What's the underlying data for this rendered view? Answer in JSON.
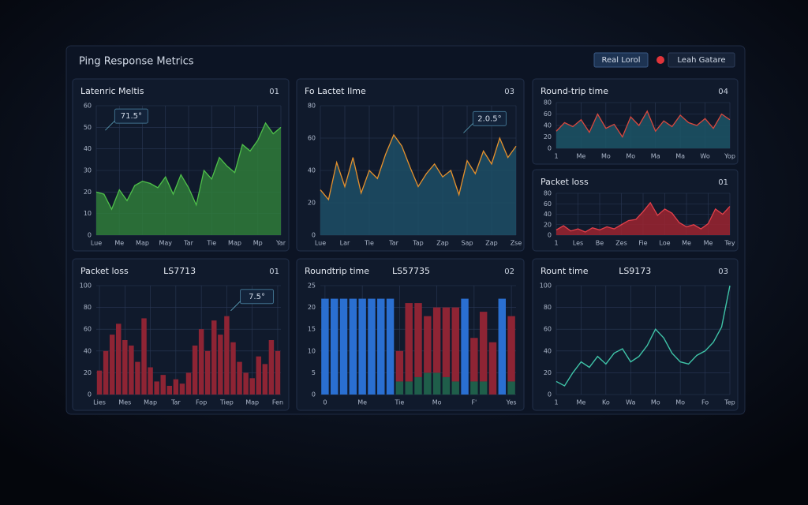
{
  "header": {
    "title": "Ping Response Metrics",
    "buttons": [
      "Real Lorol",
      "Leah Gatare"
    ]
  },
  "chart_data": [
    {
      "type": "area",
      "title": "Latenric Meltis",
      "corner": "01",
      "annotation": "71.5°",
      "color": "#2f7d3a",
      "line_color": "#4fc04a",
      "categories": [
        "Lue",
        null,
        null,
        "Me",
        null,
        null,
        "Map",
        null,
        null,
        "May",
        null,
        null,
        "Tar",
        null,
        null,
        "Tie",
        null,
        null,
        "Map",
        null,
        null,
        "Mp",
        null,
        null,
        "Yar"
      ],
      "values": [
        20,
        19,
        12,
        21,
        16,
        23,
        25,
        24,
        22,
        27,
        19,
        28,
        22,
        14,
        30,
        26,
        36,
        32,
        29,
        42,
        39,
        44,
        52,
        47,
        50
      ],
      "ylim": [
        0,
        60
      ],
      "yticks": [
        0,
        10,
        20,
        30,
        40,
        50,
        60
      ]
    },
    {
      "type": "area",
      "title": "Fo Lactet Ilme",
      "corner": "03",
      "annotation": "2.0.5°",
      "color": "#1d4f66",
      "line_color": "#e6912c",
      "categories": [
        "Lue",
        null,
        null,
        "Lar",
        null,
        null,
        "Tie",
        null,
        null,
        "Tar",
        null,
        null,
        "Tap",
        null,
        null,
        "Zap",
        null,
        null,
        "Sap",
        null,
        null,
        "Zap",
        null,
        null,
        "Zse"
      ],
      "values": [
        28,
        22,
        45,
        30,
        48,
        26,
        40,
        35,
        50,
        62,
        55,
        42,
        30,
        38,
        44,
        36,
        40,
        25,
        46,
        38,
        52,
        44,
        60,
        48,
        55
      ],
      "ylim": [
        0,
        80
      ],
      "yticks": [
        0,
        20,
        40,
        60,
        80
      ]
    },
    {
      "type": "area",
      "title": "Round-trip time",
      "corner": "04",
      "color": "#1c5566",
      "line_color": "#d9483e",
      "categories": [
        "1",
        null,
        null,
        "Me",
        null,
        null,
        "Mo",
        null,
        null,
        "Mo",
        null,
        null,
        "Ma",
        null,
        null,
        "Ma",
        null,
        null,
        "Wo",
        null,
        null,
        "Yop"
      ],
      "values": [
        30,
        45,
        38,
        50,
        28,
        60,
        35,
        42,
        20,
        55,
        40,
        65,
        30,
        48,
        38,
        58,
        45,
        40,
        52,
        35,
        60,
        50
      ],
      "ylim": [
        0,
        80
      ],
      "yticks": [
        0,
        20,
        40,
        60,
        80
      ]
    },
    {
      "type": "area",
      "title": "Packet loss",
      "corner": "01",
      "color": "#9c2530",
      "line_color": "#e0404a",
      "categories": [
        "1",
        null,
        null,
        "Les",
        null,
        null,
        "Be",
        null,
        null,
        "Zes",
        null,
        null,
        "Fie",
        null,
        null,
        "Loe",
        null,
        null,
        "Me",
        null,
        null,
        "Me",
        null,
        null,
        "Tey"
      ],
      "values": [
        10,
        18,
        8,
        12,
        6,
        14,
        10,
        16,
        12,
        20,
        28,
        30,
        45,
        62,
        38,
        50,
        42,
        24,
        16,
        20,
        12,
        22,
        50,
        40,
        55
      ],
      "ylim": [
        0,
        80
      ],
      "yticks": [
        0,
        20,
        40,
        60,
        80
      ]
    },
    {
      "type": "bar",
      "title": "Packet loss",
      "code": "LS7713",
      "corner": "01",
      "annotation": "7.5°",
      "color": "#8e2434",
      "categories": [
        "Lies",
        null,
        null,
        null,
        "Mes",
        null,
        null,
        null,
        "Map",
        null,
        null,
        null,
        "Tar",
        null,
        null,
        null,
        "Fop",
        null,
        null,
        null,
        "Tiep",
        null,
        null,
        null,
        "Map",
        null,
        null,
        null,
        "Fen"
      ],
      "values": [
        22,
        40,
        55,
        65,
        50,
        45,
        30,
        70,
        25,
        12,
        18,
        8,
        14,
        10,
        20,
        45,
        60,
        40,
        68,
        55,
        72,
        48,
        30,
        20,
        15,
        35,
        28,
        50,
        40
      ],
      "ylim": [
        0,
        100
      ],
      "yticks": [
        0,
        20,
        40,
        60,
        80,
        100
      ]
    },
    {
      "type": "stacked-bar",
      "title": "Roundtrip time",
      "code": "LS57735",
      "corner": "02",
      "categories": [
        "0",
        null,
        null,
        null,
        "Me",
        null,
        null,
        null,
        "Tie",
        null,
        null,
        null,
        "Mo",
        null,
        null,
        null,
        "F'",
        null,
        null,
        null,
        "Yes"
      ],
      "series": [
        {
          "color": "#1f5e4a",
          "values": [
            0,
            0,
            0,
            0,
            0,
            0,
            0,
            0,
            3,
            3,
            4,
            5,
            5,
            4,
            3,
            0,
            3,
            3,
            0,
            0,
            3
          ]
        },
        {
          "color": "#8e2434",
          "values": [
            0,
            0,
            0,
            0,
            0,
            0,
            0,
            0,
            7,
            18,
            17,
            13,
            15,
            16,
            17,
            0,
            10,
            16,
            12,
            0,
            15
          ]
        },
        {
          "color": "#2a6fd1",
          "values": [
            22,
            22,
            22,
            22,
            22,
            22,
            22,
            22,
            0,
            0,
            0,
            0,
            0,
            0,
            0,
            22,
            0,
            0,
            0,
            22,
            0
          ]
        }
      ],
      "ylim": [
        0,
        25
      ],
      "yticks": [
        0,
        5,
        10,
        15,
        20,
        25
      ]
    },
    {
      "type": "line",
      "title": "Rount time",
      "code": "LS9173",
      "corner": "03",
      "color": "#3fc4a8",
      "categories": [
        "1",
        null,
        null,
        "Me",
        null,
        null,
        "Ko",
        null,
        null,
        "Wa",
        null,
        null,
        "Mo",
        null,
        null,
        "Mo",
        null,
        null,
        "Fo",
        null,
        null,
        "Tep"
      ],
      "values": [
        12,
        8,
        20,
        30,
        25,
        35,
        28,
        38,
        42,
        30,
        35,
        45,
        60,
        52,
        38,
        30,
        28,
        36,
        40,
        48,
        62,
        100
      ],
      "ylim": [
        0,
        100
      ],
      "yticks": [
        0,
        20,
        40,
        60,
        80,
        100
      ]
    }
  ]
}
